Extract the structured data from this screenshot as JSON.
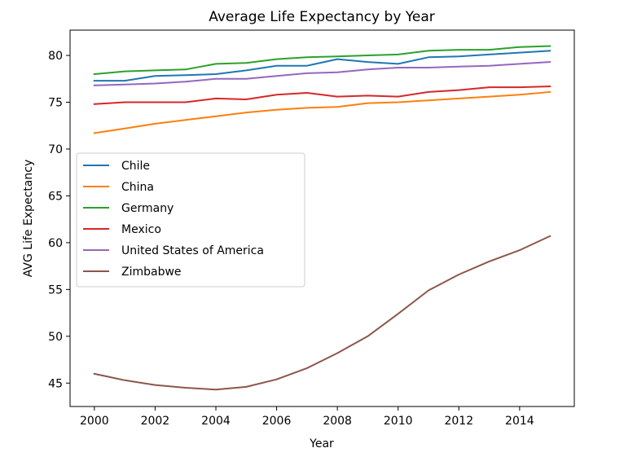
{
  "chart_data": {
    "type": "line",
    "title": "Average Life Expectancy by Year",
    "xlabel": "Year",
    "ylabel": "AVG Life Expectancy",
    "xlim": [
      1999.2,
      2015.8
    ],
    "ylim": [
      42.5,
      82.7
    ],
    "xticks": [
      2000,
      2002,
      2004,
      2006,
      2008,
      2010,
      2012,
      2014
    ],
    "yticks": [
      45,
      50,
      55,
      60,
      65,
      70,
      75,
      80
    ],
    "grid": false,
    "legend_position": "center-left",
    "x": [
      2000,
      2001,
      2002,
      2003,
      2004,
      2005,
      2006,
      2007,
      2008,
      2009,
      2010,
      2011,
      2012,
      2013,
      2014,
      2015
    ],
    "series": [
      {
        "name": "Chile",
        "color": "#1f77b4",
        "values": [
          77.3,
          77.3,
          77.8,
          77.9,
          78.0,
          78.4,
          78.9,
          78.9,
          79.6,
          79.3,
          79.1,
          79.8,
          79.9,
          80.1,
          80.3,
          80.5
        ]
      },
      {
        "name": "China",
        "color": "#ff7f0e",
        "values": [
          71.7,
          72.2,
          72.7,
          73.1,
          73.5,
          73.9,
          74.2,
          74.4,
          74.5,
          74.9,
          75.0,
          75.2,
          75.4,
          75.6,
          75.8,
          76.1
        ]
      },
      {
        "name": "Germany",
        "color": "#2ca02c",
        "values": [
          78.0,
          78.3,
          78.4,
          78.5,
          79.1,
          79.2,
          79.6,
          79.8,
          79.9,
          80.0,
          80.1,
          80.5,
          80.6,
          80.6,
          80.9,
          81.0
        ]
      },
      {
        "name": "Mexico",
        "color": "#d62728",
        "values": [
          74.8,
          75.0,
          75.0,
          75.0,
          75.4,
          75.3,
          75.8,
          76.0,
          75.6,
          75.7,
          75.6,
          76.1,
          76.3,
          76.6,
          76.6,
          76.7
        ]
      },
      {
        "name": "United States of America",
        "color": "#9467bd",
        "values": [
          76.8,
          76.9,
          77.0,
          77.2,
          77.5,
          77.5,
          77.8,
          78.1,
          78.2,
          78.5,
          78.7,
          78.7,
          78.8,
          78.9,
          79.1,
          79.3
        ]
      },
      {
        "name": "Zimbabwe",
        "color": "#8c564b",
        "values": [
          46.0,
          45.3,
          44.8,
          44.5,
          44.3,
          44.6,
          45.4,
          46.6,
          48.2,
          50.0,
          52.4,
          54.9,
          56.6,
          58.0,
          59.2,
          60.7
        ]
      }
    ]
  }
}
